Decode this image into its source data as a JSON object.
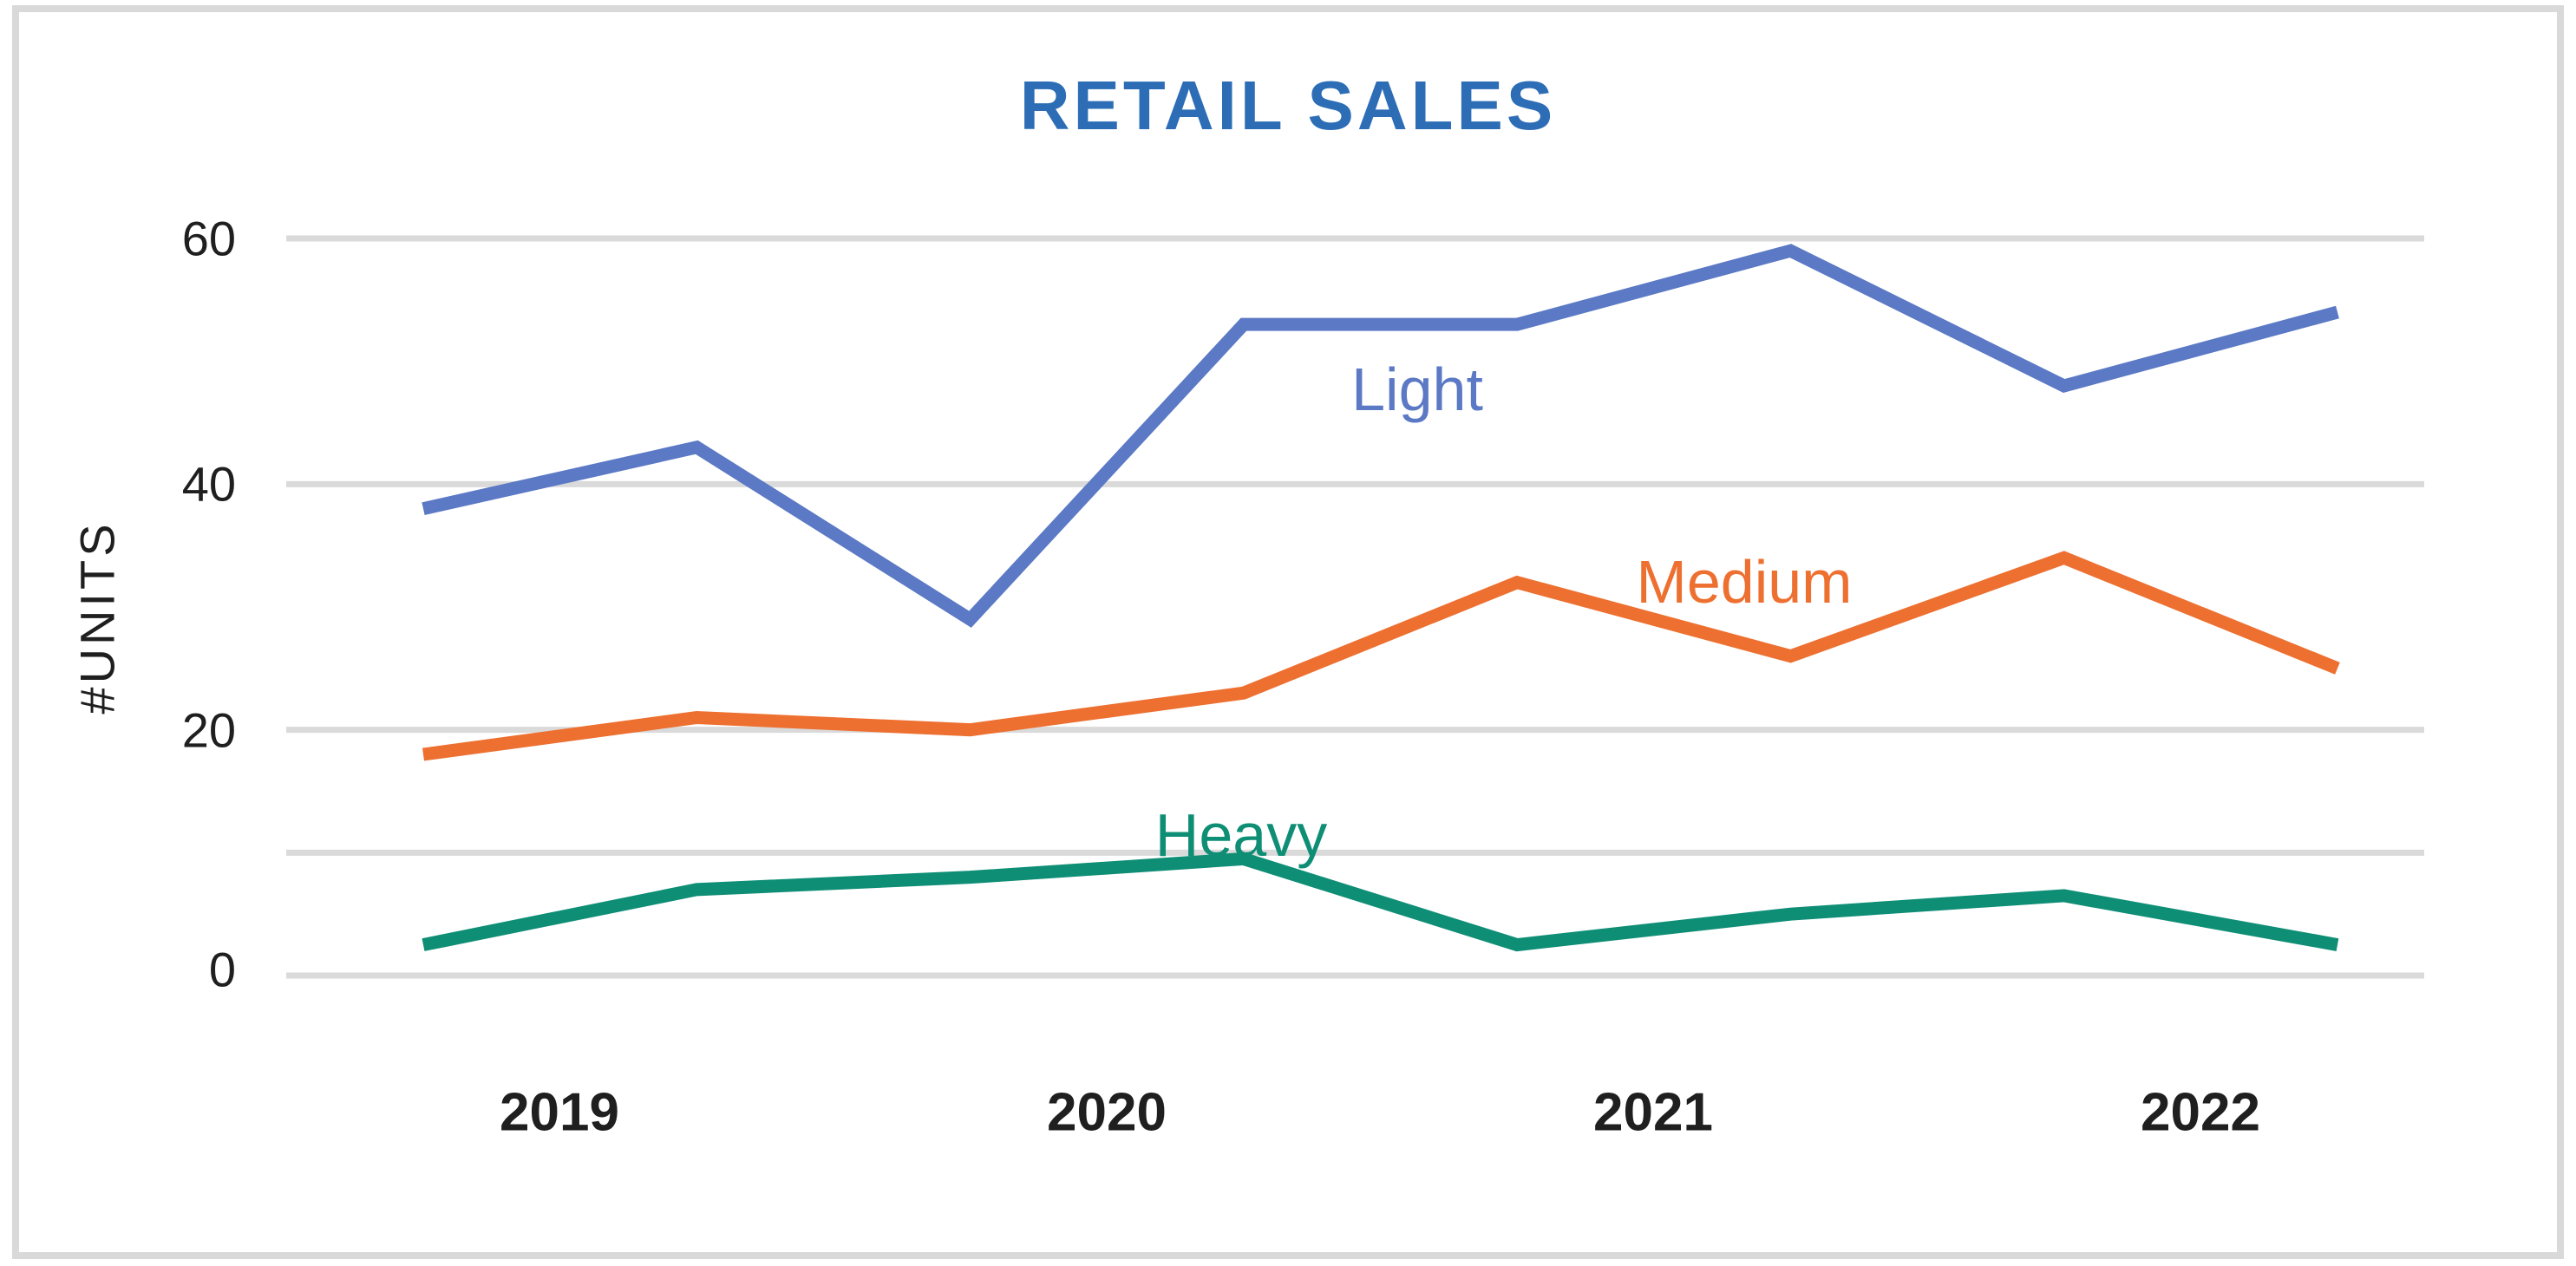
{
  "chart_data": {
    "type": "line",
    "title": "RETAIL SALES",
    "title_color": "#2c6db6",
    "ylabel": "#UNITS",
    "x_tick_labels": [
      "2019",
      "2020",
      "2021",
      "2022"
    ],
    "points_per_year": 2,
    "y_tick_labels": [
      "60",
      "40",
      "20",
      "0"
    ],
    "y_tick_values": [
      60,
      40,
      20,
      0
    ],
    "gridline_values": [
      60,
      40,
      20,
      10,
      0
    ],
    "ylim": [
      0,
      60
    ],
    "grid_on": true,
    "grid_color": "#dadada",
    "axis_text_color": "#1f1f1f",
    "legend_position": "inline-labels-on-lines",
    "series": [
      {
        "name": "Light",
        "color": "#5b79c4",
        "values": [
          38,
          43,
          29,
          53,
          53,
          59,
          48,
          54
        ]
      },
      {
        "name": "Medium",
        "color": "#ed7031",
        "values": [
          18,
          21,
          20,
          23,
          32,
          26,
          34,
          25
        ]
      },
      {
        "name": "Heavy",
        "color": "#0f8e76",
        "values": [
          2.5,
          7,
          8,
          9.5,
          2.5,
          5,
          6.5,
          2.5
        ]
      }
    ]
  }
}
